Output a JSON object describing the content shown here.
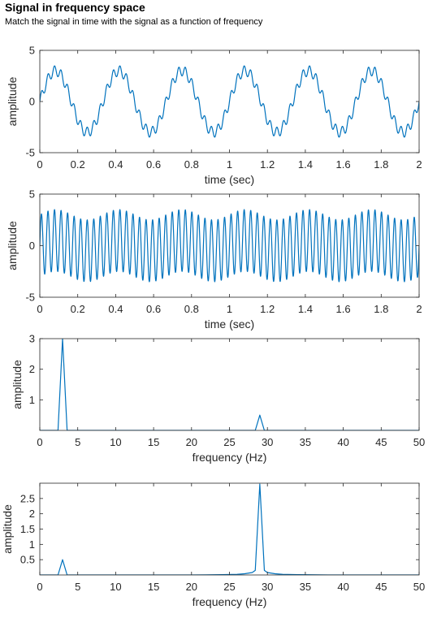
{
  "header": {
    "title": "Signal in frequency space",
    "subtitle": "Match the signal in time with the signal as a function of frequency"
  },
  "colors": {
    "line": "#0072BD",
    "axes": "#262626",
    "background": "#ffffff"
  },
  "chart_data": [
    {
      "type": "line",
      "xlabel": "time (sec)",
      "ylabel": "amplitude",
      "xlim": [
        0,
        2
      ],
      "ylim": [
        -5,
        5
      ],
      "xticks": [
        0,
        0.2,
        0.4,
        0.6,
        0.8,
        1,
        1.2,
        1.4,
        1.6,
        1.8,
        2
      ],
      "xtick_labels": [
        "0",
        "0.2",
        "0.4",
        "0.6",
        "0.8",
        "1",
        "1.2",
        "1.4",
        "1.6",
        "1.8",
        "2"
      ],
      "yticks": [
        -5,
        0,
        5
      ],
      "ytick_labels": [
        "-5",
        "0",
        "5"
      ],
      "series": [
        {
          "components": [
            {
              "amplitude": 3,
              "frequency_hz": 3
            },
            {
              "amplitude": 0.5,
              "frequency_hz": 29
            }
          ]
        }
      ],
      "grid": false
    },
    {
      "type": "line",
      "xlabel": "time (sec)",
      "ylabel": "amplitude",
      "xlim": [
        0,
        2
      ],
      "ylim": [
        -5,
        5
      ],
      "xticks": [
        0,
        0.2,
        0.4,
        0.6,
        0.8,
        1,
        1.2,
        1.4,
        1.6,
        1.8,
        2
      ],
      "xtick_labels": [
        "0",
        "0.2",
        "0.4",
        "0.6",
        "0.8",
        "1",
        "1.2",
        "1.4",
        "1.6",
        "1.8",
        "2"
      ],
      "yticks": [
        -5,
        0,
        5
      ],
      "ytick_labels": [
        "-5",
        "0",
        "5"
      ],
      "series": [
        {
          "components": [
            {
              "amplitude": 3,
              "frequency_hz": 29
            },
            {
              "amplitude": 0.5,
              "frequency_hz": 3
            }
          ]
        }
      ],
      "grid": false
    },
    {
      "type": "line",
      "xlabel": "frequency (Hz)",
      "ylabel": "amplitude",
      "xlim": [
        0,
        50
      ],
      "ylim": [
        0,
        3
      ],
      "xticks": [
        0,
        5,
        10,
        15,
        20,
        25,
        30,
        35,
        40,
        45,
        50
      ],
      "xtick_labels": [
        "0",
        "5",
        "10",
        "15",
        "20",
        "25",
        "30",
        "35",
        "40",
        "45",
        "50"
      ],
      "yticks": [
        1,
        2,
        3
      ],
      "ytick_labels": [
        "1",
        "2",
        "3"
      ],
      "series": [
        {
          "x": [
            0,
            2.4,
            3,
            3.6,
            28.4,
            29,
            29.6,
            50
          ],
          "y": [
            0,
            0,
            3,
            0,
            0,
            0.5,
            0,
            0
          ]
        }
      ],
      "grid": false
    },
    {
      "type": "line",
      "xlabel": "frequency (Hz)",
      "ylabel": "amplitude",
      "xlim": [
        0,
        50
      ],
      "ylim": [
        0,
        3
      ],
      "xticks": [
        0,
        5,
        10,
        15,
        20,
        25,
        30,
        35,
        40,
        45,
        50
      ],
      "xtick_labels": [
        "0",
        "5",
        "10",
        "15",
        "20",
        "25",
        "30",
        "35",
        "40",
        "45",
        "50"
      ],
      "yticks": [
        0.5,
        1,
        1.5,
        2,
        2.5
      ],
      "ytick_labels": [
        "0.5",
        "1",
        "1.5",
        "2",
        "2.5"
      ],
      "series": [
        {
          "x": [
            0,
            2.4,
            3,
            3.6,
            20,
            24,
            26,
            27,
            28,
            28.4,
            29,
            29.6,
            30,
            31,
            32,
            34,
            38,
            50
          ],
          "y": [
            0,
            0,
            0.5,
            0,
            0,
            0.01,
            0.02,
            0.04,
            0.08,
            0.15,
            2.97,
            0.15,
            0.08,
            0.04,
            0.02,
            0.01,
            0,
            0
          ]
        }
      ],
      "grid": false
    }
  ]
}
